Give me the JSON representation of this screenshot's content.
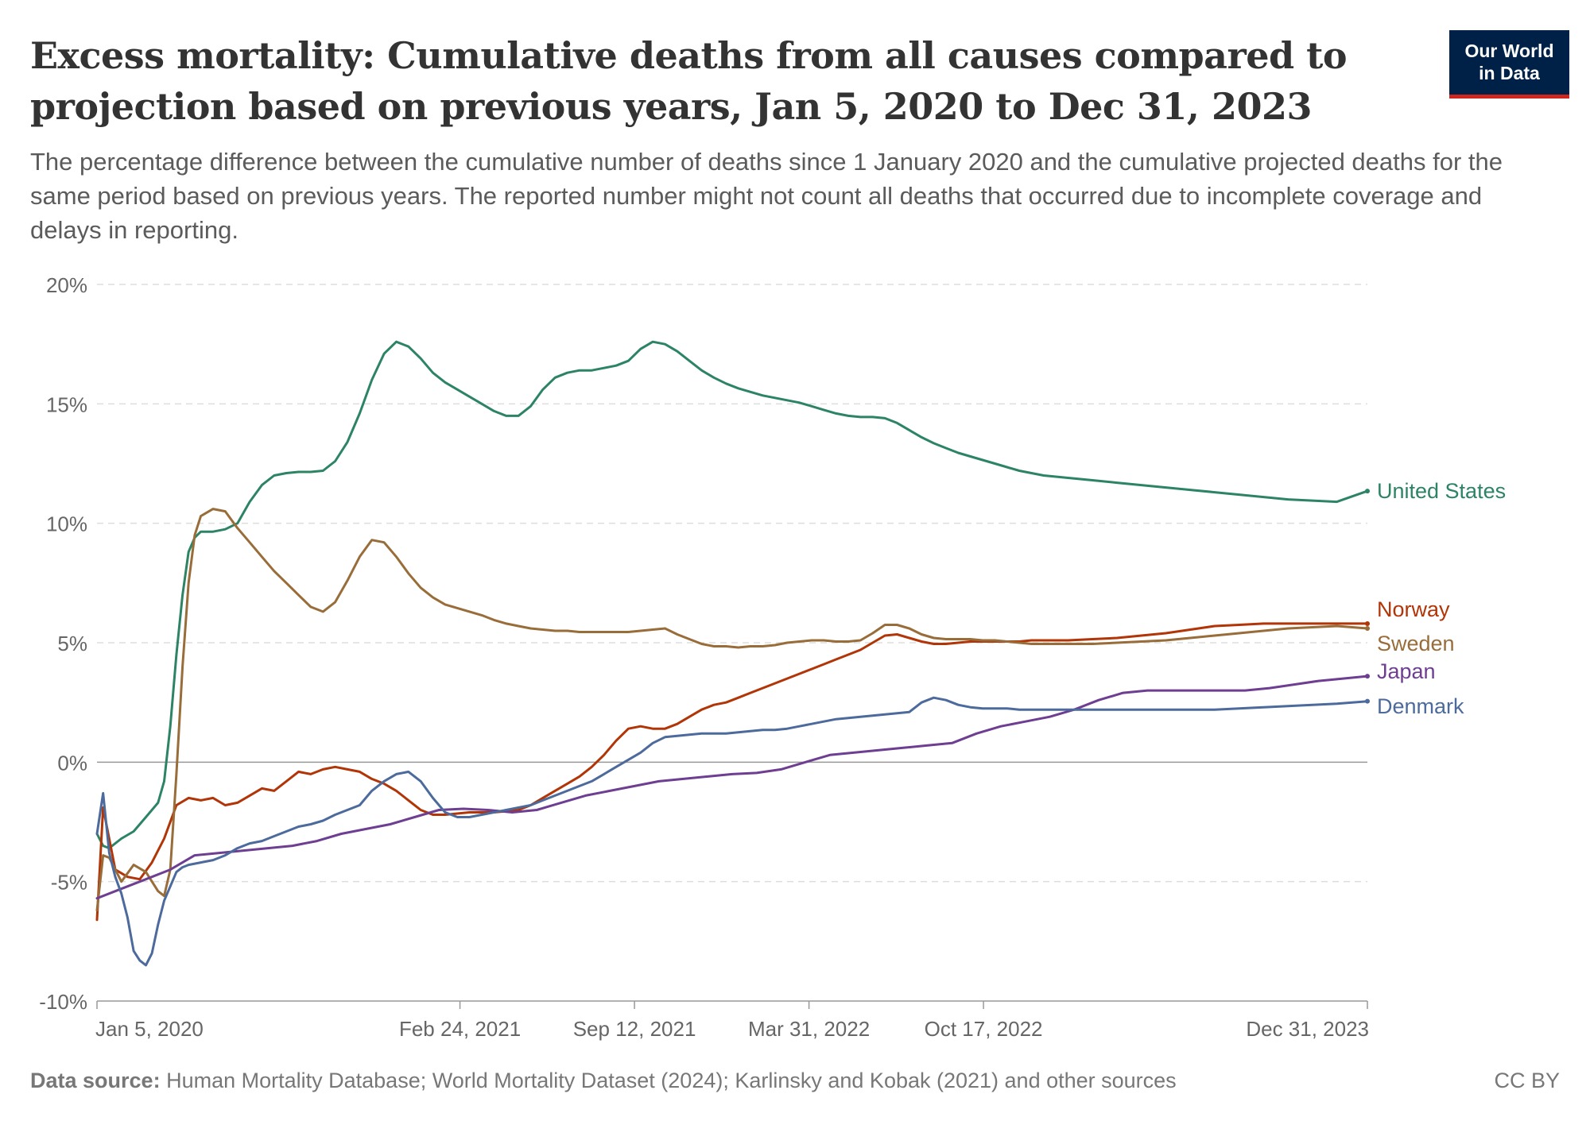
{
  "header": {
    "title": "Excess mortality: Cumulative deaths from all causes compared to projection based on previous years, Jan 5, 2020 to Dec 31, 2023",
    "subtitle": "The percentage difference between the cumulative number of deaths since 1 January 2020 and the cumulative projected deaths for the same period based on previous years. The reported number might not count all deaths that occurred due to incomplete coverage and delays in reporting.",
    "logo_line1": "Our World",
    "logo_line2": "in Data"
  },
  "footer": {
    "source_label": "Data source:",
    "source_text": "Human Mortality Database; World Mortality Dataset (2024); Karlinsky and Kobak (2021) and other sources",
    "license": "CC BY"
  },
  "colors": {
    "United States": "#2c8465",
    "Norway": "#b13507",
    "Sweden": "#996d39",
    "Japan": "#6d3e91",
    "Denmark": "#4c6a9c",
    "grid": "#dddddd",
    "axis_text": "#666666",
    "zero_line": "#999999"
  },
  "chart_data": {
    "type": "line",
    "xlabel": "",
    "ylabel": "",
    "ylim": [
      -10,
      20
    ],
    "xlim": [
      "2020-01-05",
      "2023-12-31"
    ],
    "y_ticks": [
      20,
      15,
      10,
      5,
      0,
      -5,
      -10
    ],
    "y_tick_labels": [
      "20%",
      "15%",
      "10%",
      "5%",
      "0%",
      "-5%",
      "-10%"
    ],
    "x_ticks": [
      "2020-01-05",
      "2021-02-24",
      "2021-09-12",
      "2022-03-31",
      "2022-10-17",
      "2023-12-31"
    ],
    "x_tick_labels": [
      "Jan 5, 2020",
      "Feb 24, 2021",
      "Sep 12, 2021",
      "Mar 31, 2022",
      "Oct 17, 2022",
      "Dec 31, 2023"
    ],
    "grid": "horizontal dashed",
    "legend": "right, labels at line ends",
    "series": [
      {
        "name": "United States",
        "dates": [
          "2020-01-05",
          "2020-01-12",
          "2020-01-19",
          "2020-02-02",
          "2020-02-16",
          "2020-03-01",
          "2020-03-15",
          "2020-03-22",
          "2020-03-29",
          "2020-04-05",
          "2020-04-12",
          "2020-04-19",
          "2020-04-26",
          "2020-05-03",
          "2020-05-17",
          "2020-05-31",
          "2020-06-14",
          "2020-06-28",
          "2020-07-12",
          "2020-07-26",
          "2020-08-09",
          "2020-08-23",
          "2020-09-06",
          "2020-09-20",
          "2020-10-04",
          "2020-10-18",
          "2020-11-01",
          "2020-11-15",
          "2020-11-29",
          "2020-12-13",
          "2020-12-27",
          "2021-01-10",
          "2021-01-24",
          "2021-02-07",
          "2021-02-21",
          "2021-03-07",
          "2021-03-21",
          "2021-04-04",
          "2021-04-18",
          "2021-05-02",
          "2021-05-16",
          "2021-05-30",
          "2021-06-13",
          "2021-06-27",
          "2021-07-11",
          "2021-07-25",
          "2021-08-08",
          "2021-08-22",
          "2021-09-05",
          "2021-09-19",
          "2021-10-03",
          "2021-10-17",
          "2021-10-31",
          "2021-11-14",
          "2021-11-28",
          "2021-12-12",
          "2021-12-26",
          "2022-01-09",
          "2022-01-23",
          "2022-02-06",
          "2022-02-20",
          "2022-03-06",
          "2022-03-20",
          "2022-04-03",
          "2022-04-17",
          "2022-05-01",
          "2022-05-15",
          "2022-05-29",
          "2022-06-12",
          "2022-06-26",
          "2022-07-10",
          "2022-07-24",
          "2022-08-07",
          "2022-08-21",
          "2022-09-04",
          "2022-09-18",
          "2022-10-02",
          "2022-10-16",
          "2022-10-30",
          "2022-11-13",
          "2022-11-27",
          "2022-12-11",
          "2022-12-25",
          "2023-01-22",
          "2023-02-19",
          "2023-03-19",
          "2023-04-16",
          "2023-05-14",
          "2023-06-11",
          "2023-07-09",
          "2023-08-06",
          "2023-09-03",
          "2023-10-01",
          "2023-10-29",
          "2023-11-26",
          "2023-12-31"
        ],
        "values": [
          -3.0,
          -3.5,
          -3.6,
          -3.2,
          -2.9,
          -2.3,
          -1.7,
          -0.8,
          1.5,
          4.5,
          7.0,
          8.8,
          9.4,
          9.65,
          9.65,
          9.75,
          10.0,
          10.9,
          11.6,
          12.0,
          12.1,
          12.15,
          12.15,
          12.2,
          12.6,
          13.4,
          14.6,
          16.0,
          17.1,
          17.6,
          17.4,
          16.9,
          16.3,
          15.9,
          15.6,
          15.3,
          15.0,
          14.7,
          14.5,
          14.5,
          14.9,
          15.6,
          16.1,
          16.3,
          16.4,
          16.4,
          16.5,
          16.6,
          16.8,
          17.3,
          17.6,
          17.5,
          17.2,
          16.8,
          16.4,
          16.1,
          15.85,
          15.65,
          15.5,
          15.35,
          15.25,
          15.15,
          15.05,
          14.9,
          14.75,
          14.6,
          14.5,
          14.45,
          14.45,
          14.4,
          14.2,
          13.9,
          13.6,
          13.35,
          13.15,
          12.95,
          12.8,
          12.65,
          12.5,
          12.35,
          12.2,
          12.1,
          12.0,
          11.9,
          11.8,
          11.7,
          11.6,
          11.5,
          11.4,
          11.3,
          11.2,
          11.1,
          11.0,
          10.95,
          10.9,
          11.35
        ]
      },
      {
        "name": "Norway",
        "dates": [
          "2020-01-05",
          "2020-01-12",
          "2020-01-26",
          "2020-02-09",
          "2020-02-23",
          "2020-03-08",
          "2020-03-22",
          "2020-04-05",
          "2020-04-19",
          "2020-05-03",
          "2020-05-17",
          "2020-05-31",
          "2020-06-14",
          "2020-06-28",
          "2020-07-12",
          "2020-07-26",
          "2020-08-09",
          "2020-08-23",
          "2020-09-06",
          "2020-09-20",
          "2020-10-04",
          "2020-10-18",
          "2020-11-01",
          "2020-11-15",
          "2020-11-29",
          "2020-12-13",
          "2020-12-27",
          "2021-01-10",
          "2021-01-24",
          "2021-02-07",
          "2021-02-21",
          "2021-03-07",
          "2021-03-21",
          "2021-04-04",
          "2021-04-18",
          "2021-05-02",
          "2021-05-16",
          "2021-05-30",
          "2021-06-13",
          "2021-06-27",
          "2021-07-11",
          "2021-07-25",
          "2021-08-08",
          "2021-08-22",
          "2021-09-05",
          "2021-09-19",
          "2021-10-03",
          "2021-10-17",
          "2021-10-31",
          "2021-11-14",
          "2021-11-28",
          "2021-12-12",
          "2021-12-26",
          "2022-01-09",
          "2022-01-23",
          "2022-02-06",
          "2022-02-20",
          "2022-03-06",
          "2022-03-20",
          "2022-04-03",
          "2022-04-17",
          "2022-05-01",
          "2022-05-15",
          "2022-05-29",
          "2022-06-12",
          "2022-06-26",
          "2022-07-10",
          "2022-07-24",
          "2022-08-07",
          "2022-08-21",
          "2022-09-04",
          "2022-09-18",
          "2022-10-02",
          "2022-10-16",
          "2022-10-30",
          "2022-11-13",
          "2022-11-27",
          "2022-12-11",
          "2022-12-25",
          "2023-01-22",
          "2023-02-19",
          "2023-03-19",
          "2023-04-16",
          "2023-05-14",
          "2023-06-11",
          "2023-07-09",
          "2023-08-06",
          "2023-09-03",
          "2023-10-01",
          "2023-10-29",
          "2023-11-26",
          "2023-12-31"
        ],
        "values": [
          -6.6,
          -1.9,
          -4.5,
          -4.8,
          -4.9,
          -4.2,
          -3.2,
          -1.8,
          -1.5,
          -1.6,
          -1.5,
          -1.8,
          -1.7,
          -1.4,
          -1.1,
          -1.2,
          -0.8,
          -0.4,
          -0.5,
          -0.3,
          -0.2,
          -0.3,
          -0.4,
          -0.7,
          -0.9,
          -1.2,
          -1.6,
          -2.0,
          -2.2,
          -2.2,
          -2.15,
          -2.1,
          -2.1,
          -2.1,
          -2.05,
          -2.0,
          -1.8,
          -1.5,
          -1.2,
          -0.9,
          -0.6,
          -0.2,
          0.3,
          0.9,
          1.4,
          1.5,
          1.4,
          1.4,
          1.6,
          1.9,
          2.2,
          2.4,
          2.5,
          2.7,
          2.9,
          3.1,
          3.3,
          3.5,
          3.7,
          3.9,
          4.1,
          4.3,
          4.5,
          4.7,
          5.0,
          5.3,
          5.35,
          5.2,
          5.05,
          4.95,
          4.95,
          5.0,
          5.05,
          5.05,
          5.05,
          5.05,
          5.05,
          5.1,
          5.1,
          5.1,
          5.15,
          5.2,
          5.3,
          5.4,
          5.55,
          5.7,
          5.75,
          5.8,
          5.8,
          5.8,
          5.8,
          5.8
        ]
      },
      {
        "name": "Sweden",
        "dates": [
          "2020-01-05",
          "2020-01-12",
          "2020-01-19",
          "2020-02-02",
          "2020-02-16",
          "2020-03-01",
          "2020-03-15",
          "2020-03-22",
          "2020-03-29",
          "2020-04-05",
          "2020-04-12",
          "2020-04-19",
          "2020-04-26",
          "2020-05-03",
          "2020-05-17",
          "2020-05-31",
          "2020-06-14",
          "2020-06-28",
          "2020-07-12",
          "2020-07-26",
          "2020-08-09",
          "2020-08-23",
          "2020-09-06",
          "2020-09-20",
          "2020-10-04",
          "2020-10-18",
          "2020-11-01",
          "2020-11-15",
          "2020-11-29",
          "2020-12-13",
          "2020-12-27",
          "2021-01-10",
          "2021-01-24",
          "2021-02-07",
          "2021-02-21",
          "2021-03-07",
          "2021-03-21",
          "2021-04-04",
          "2021-04-18",
          "2021-05-02",
          "2021-05-16",
          "2021-05-30",
          "2021-06-13",
          "2021-06-27",
          "2021-07-11",
          "2021-07-25",
          "2021-08-08",
          "2021-08-22",
          "2021-09-05",
          "2021-09-19",
          "2021-10-03",
          "2021-10-17",
          "2021-10-31",
          "2021-11-14",
          "2021-11-28",
          "2021-12-12",
          "2021-12-26",
          "2022-01-09",
          "2022-01-23",
          "2022-02-06",
          "2022-02-20",
          "2022-03-06",
          "2022-03-20",
          "2022-04-03",
          "2022-04-17",
          "2022-05-01",
          "2022-05-15",
          "2022-05-29",
          "2022-06-12",
          "2022-06-26",
          "2022-07-10",
          "2022-07-24",
          "2022-08-07",
          "2022-08-21",
          "2022-09-04",
          "2022-09-18",
          "2022-10-02",
          "2022-10-16",
          "2022-10-30",
          "2022-11-13",
          "2022-11-27",
          "2022-12-11",
          "2022-12-25",
          "2023-01-22",
          "2023-02-19",
          "2023-03-19",
          "2023-04-16",
          "2023-05-14",
          "2023-06-11",
          "2023-07-09",
          "2023-08-06",
          "2023-09-03",
          "2023-10-01",
          "2023-10-29",
          "2023-11-26",
          "2023-12-31"
        ],
        "values": [
          -6.2,
          -3.9,
          -4.0,
          -5.0,
          -4.3,
          -4.6,
          -5.4,
          -5.6,
          -4.5,
          -0.5,
          4.0,
          7.5,
          9.5,
          10.3,
          10.6,
          10.5,
          9.8,
          9.2,
          8.6,
          8.0,
          7.5,
          7.0,
          6.5,
          6.3,
          6.7,
          7.6,
          8.6,
          9.3,
          9.2,
          8.6,
          7.9,
          7.3,
          6.9,
          6.6,
          6.45,
          6.3,
          6.15,
          5.95,
          5.8,
          5.7,
          5.6,
          5.55,
          5.5,
          5.5,
          5.45,
          5.45,
          5.45,
          5.45,
          5.45,
          5.5,
          5.55,
          5.6,
          5.35,
          5.15,
          4.95,
          4.85,
          4.85,
          4.8,
          4.85,
          4.85,
          4.9,
          5.0,
          5.05,
          5.1,
          5.1,
          5.05,
          5.05,
          5.1,
          5.4,
          5.75,
          5.75,
          5.6,
          5.35,
          5.2,
          5.15,
          5.15,
          5.15,
          5.1,
          5.1,
          5.05,
          5.0,
          4.95,
          4.95,
          4.95,
          4.95,
          5.0,
          5.05,
          5.1,
          5.2,
          5.3,
          5.4,
          5.5,
          5.6,
          5.65,
          5.7,
          5.6
        ]
      },
      {
        "name": "Japan",
        "dates": [
          "2020-01-05",
          "2020-02-02",
          "2020-03-01",
          "2020-03-29",
          "2020-04-26",
          "2020-05-24",
          "2020-06-21",
          "2020-07-19",
          "2020-08-16",
          "2020-09-13",
          "2020-10-11",
          "2020-11-08",
          "2020-12-06",
          "2021-01-03",
          "2021-01-31",
          "2021-02-28",
          "2021-03-28",
          "2021-04-25",
          "2021-05-23",
          "2021-06-20",
          "2021-07-18",
          "2021-08-15",
          "2021-09-12",
          "2021-10-10",
          "2021-11-07",
          "2021-12-05",
          "2022-01-02",
          "2022-01-30",
          "2022-02-27",
          "2022-03-27",
          "2022-04-24",
          "2022-05-22",
          "2022-06-19",
          "2022-07-17",
          "2022-08-14",
          "2022-09-11",
          "2022-10-09",
          "2022-11-06",
          "2022-12-04",
          "2023-01-01",
          "2023-01-29",
          "2023-02-26",
          "2023-03-26",
          "2023-04-23",
          "2023-05-21",
          "2023-06-18",
          "2023-07-16",
          "2023-08-13",
          "2023-09-10",
          "2023-10-08",
          "2023-11-05",
          "2023-12-03",
          "2023-12-31"
        ],
        "values": [
          -5.7,
          -5.3,
          -4.9,
          -4.5,
          -3.9,
          -3.8,
          -3.7,
          -3.6,
          -3.5,
          -3.3,
          -3.0,
          -2.8,
          -2.6,
          -2.3,
          -2.0,
          -1.95,
          -2.0,
          -2.1,
          -2.0,
          -1.7,
          -1.4,
          -1.2,
          -1.0,
          -0.8,
          -0.7,
          -0.6,
          -0.5,
          -0.45,
          -0.3,
          0.0,
          0.3,
          0.4,
          0.5,
          0.6,
          0.7,
          0.8,
          1.2,
          1.5,
          1.7,
          1.9,
          2.2,
          2.6,
          2.9,
          3.0,
          3.0,
          3.0,
          3.0,
          3.0,
          3.1,
          3.25,
          3.4,
          3.5,
          3.6
        ]
      },
      {
        "name": "Denmark",
        "dates": [
          "2020-01-05",
          "2020-01-12",
          "2020-01-19",
          "2020-01-26",
          "2020-02-02",
          "2020-02-09",
          "2020-02-16",
          "2020-02-23",
          "2020-03-01",
          "2020-03-08",
          "2020-03-15",
          "2020-03-22",
          "2020-03-29",
          "2020-04-05",
          "2020-04-12",
          "2020-04-19",
          "2020-05-03",
          "2020-05-17",
          "2020-05-31",
          "2020-06-14",
          "2020-06-28",
          "2020-07-12",
          "2020-07-26",
          "2020-08-09",
          "2020-08-23",
          "2020-09-06",
          "2020-09-20",
          "2020-10-04",
          "2020-10-18",
          "2020-11-01",
          "2020-11-15",
          "2020-11-29",
          "2020-12-13",
          "2020-12-27",
          "2021-01-10",
          "2021-01-24",
          "2021-02-07",
          "2021-02-21",
          "2021-03-07",
          "2021-03-21",
          "2021-04-04",
          "2021-04-18",
          "2021-05-02",
          "2021-05-16",
          "2021-05-30",
          "2021-06-13",
          "2021-06-27",
          "2021-07-11",
          "2021-07-25",
          "2021-08-08",
          "2021-08-22",
          "2021-09-05",
          "2021-09-19",
          "2021-10-03",
          "2021-10-17",
          "2021-10-31",
          "2021-11-14",
          "2021-11-28",
          "2021-12-12",
          "2021-12-26",
          "2022-01-09",
          "2022-01-23",
          "2022-02-06",
          "2022-02-20",
          "2022-03-06",
          "2022-03-20",
          "2022-04-03",
          "2022-04-17",
          "2022-05-01",
          "2022-05-15",
          "2022-05-29",
          "2022-06-12",
          "2022-06-26",
          "2022-07-10",
          "2022-07-24",
          "2022-08-07",
          "2022-08-21",
          "2022-09-04",
          "2022-09-18",
          "2022-10-02",
          "2022-10-16",
          "2022-10-30",
          "2022-11-13",
          "2022-11-27",
          "2022-12-11",
          "2022-12-25",
          "2023-01-22",
          "2023-02-19",
          "2023-03-19",
          "2023-04-16",
          "2023-05-14",
          "2023-06-11",
          "2023-07-09",
          "2023-08-06",
          "2023-09-03",
          "2023-10-01",
          "2023-10-29",
          "2023-11-26",
          "2023-12-31"
        ],
        "values": [
          -3.0,
          -1.3,
          -3.8,
          -4.8,
          -5.5,
          -6.5,
          -7.9,
          -8.3,
          -8.5,
          -8.0,
          -6.8,
          -5.8,
          -5.2,
          -4.6,
          -4.4,
          -4.3,
          -4.2,
          -4.1,
          -3.9,
          -3.6,
          -3.4,
          -3.3,
          -3.1,
          -2.9,
          -2.7,
          -2.6,
          -2.45,
          -2.2,
          -2.0,
          -1.8,
          -1.2,
          -0.8,
          -0.5,
          -0.4,
          -0.8,
          -1.5,
          -2.1,
          -2.3,
          -2.3,
          -2.2,
          -2.1,
          -2.0,
          -1.9,
          -1.8,
          -1.6,
          -1.4,
          -1.2,
          -1.0,
          -0.8,
          -0.5,
          -0.2,
          0.1,
          0.4,
          0.8,
          1.05,
          1.1,
          1.15,
          1.2,
          1.2,
          1.2,
          1.25,
          1.3,
          1.35,
          1.35,
          1.4,
          1.5,
          1.6,
          1.7,
          1.8,
          1.85,
          1.9,
          1.95,
          2.0,
          2.05,
          2.1,
          2.5,
          2.7,
          2.6,
          2.4,
          2.3,
          2.25,
          2.25,
          2.25,
          2.2,
          2.2,
          2.2,
          2.2,
          2.2,
          2.2,
          2.2,
          2.2,
          2.2,
          2.2,
          2.25,
          2.3,
          2.35,
          2.4,
          2.45,
          2.55
        ]
      }
    ]
  }
}
